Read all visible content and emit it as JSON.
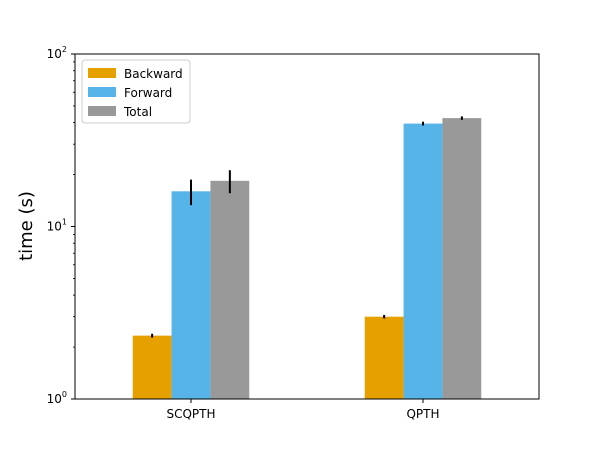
{
  "chart_data": {
    "type": "bar",
    "title": "",
    "xlabel": "",
    "ylabel": "time (s)",
    "yscale": "log",
    "ylim": [
      1,
      100
    ],
    "grid": false,
    "legend_position": "top-left",
    "categories": [
      "SCQPTH",
      "QPTH"
    ],
    "y_tick_labels": [
      {
        "value": 1,
        "base": "10",
        "exp": "0"
      },
      {
        "value": 10,
        "base": "10",
        "exp": "1"
      },
      {
        "value": 100,
        "base": "10",
        "exp": "2"
      }
    ],
    "series": [
      {
        "name": "Backward",
        "color": "#e6a000",
        "values": [
          2.33,
          3.0
        ],
        "error": [
          0.06,
          0.07
        ]
      },
      {
        "name": "Forward",
        "color": "#56b4e9",
        "values": [
          16.0,
          39.5
        ],
        "error": [
          2.7,
          1.0
        ]
      },
      {
        "name": "Total",
        "color": "#999999",
        "values": [
          18.4,
          42.5
        ],
        "error": [
          2.8,
          1.0
        ]
      }
    ]
  }
}
